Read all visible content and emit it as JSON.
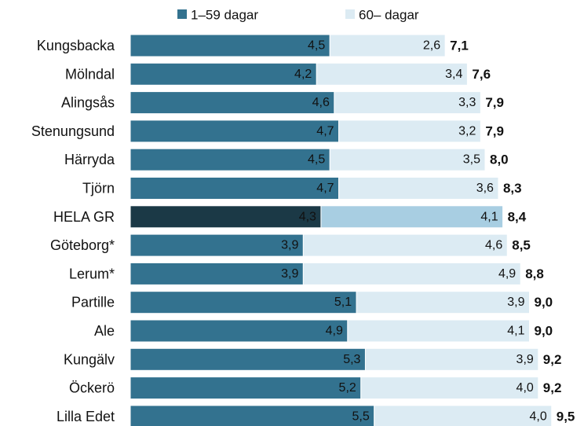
{
  "chart_data": {
    "type": "stacked-barh",
    "categories": [
      "Kungsbacka",
      "Mölndal",
      "Alingsås",
      "Stenungsund",
      "Härryda",
      "Tjörn",
      "HELA GR",
      "Göteborg*",
      "Lerum*",
      "Partille",
      "Ale",
      "Kungälv",
      "Öckerö",
      "Lilla Edet"
    ],
    "series": [
      {
        "name": "1–59 dagar",
        "color": "#33728f",
        "highlight_color": "#1b3946",
        "values": [
          4.5,
          4.2,
          4.6,
          4.7,
          4.5,
          4.7,
          4.3,
          3.9,
          3.9,
          5.1,
          4.9,
          5.3,
          5.2,
          5.5
        ],
        "value_labels": [
          "4,5",
          "4,2",
          "4,6",
          "4,7",
          "4,5",
          "4,7",
          "4,3",
          "3,9",
          "3,9",
          "5,1",
          "4,9",
          "5,3",
          "5,2",
          "5,5"
        ]
      },
      {
        "name": "60– dagar",
        "color": "#dcebf3",
        "highlight_color": "#a8cee2",
        "values": [
          2.6,
          3.4,
          3.3,
          3.2,
          3.5,
          3.6,
          4.1,
          4.6,
          4.9,
          3.9,
          4.1,
          3.9,
          4.0,
          4.0
        ],
        "value_labels": [
          "2,6",
          "3,4",
          "3,3",
          "3,2",
          "3,5",
          "3,6",
          "4,1",
          "4,6",
          "4,9",
          "3,9",
          "4,1",
          "3,9",
          "4,0",
          "4,0"
        ]
      }
    ],
    "totals": [
      7.1,
      7.6,
      7.9,
      7.9,
      8.0,
      8.3,
      8.4,
      8.5,
      8.8,
      9.0,
      9.0,
      9.2,
      9.2,
      9.5
    ],
    "total_labels": [
      "7,1",
      "7,6",
      "7,9",
      "7,9",
      "8,0",
      "8,3",
      "8,4",
      "8,5",
      "8,8",
      "9,0",
      "9,0",
      "9,2",
      "9,2",
      "9,5"
    ],
    "highlight_index": 6,
    "xlim": [
      0,
      10
    ]
  }
}
